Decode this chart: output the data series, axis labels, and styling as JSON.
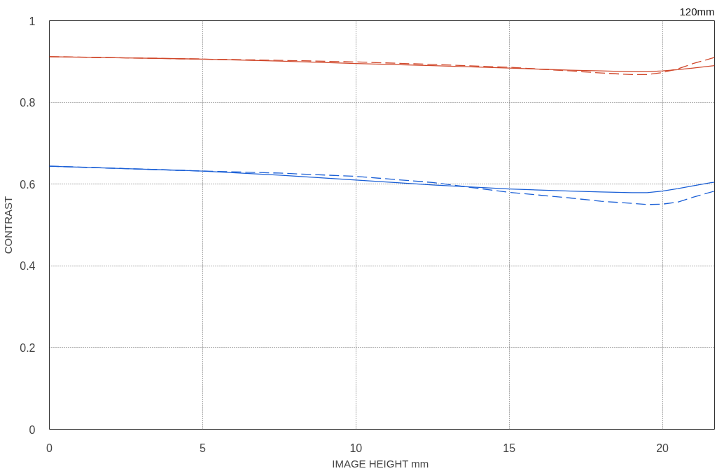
{
  "chart_data": {
    "type": "line",
    "title": "120mm",
    "xlabel": "IMAGE HEIGHT  mm",
    "ylabel": "CONTRAST",
    "xlim": [
      0,
      21.7
    ],
    "ylim": [
      0,
      1
    ],
    "xticks": [
      0,
      5,
      10,
      15,
      20
    ],
    "yticks": [
      0,
      0.2,
      0.4,
      0.6,
      0.8,
      1
    ],
    "grid": true,
    "marker": "none",
    "x": [
      0,
      2.5,
      5,
      7.5,
      10,
      12.5,
      15,
      17,
      18,
      19,
      19.5,
      20,
      20.5,
      21,
      21.7
    ],
    "series": [
      {
        "color": "#d0472a",
        "line_style": "solid",
        "values": [
          0.912,
          0.909,
          0.906,
          0.901,
          0.895,
          0.89,
          0.884,
          0.879,
          0.877,
          0.875,
          0.875,
          0.877,
          0.88,
          0.884,
          0.89
        ]
      },
      {
        "color": "#d0472a",
        "line_style": "dashed",
        "values": [
          0.912,
          0.909,
          0.906,
          0.903,
          0.899,
          0.893,
          0.886,
          0.877,
          0.872,
          0.868,
          0.868,
          0.873,
          0.882,
          0.895,
          0.91
        ]
      },
      {
        "color": "#1a5fd6",
        "line_style": "solid",
        "values": [
          0.644,
          0.638,
          0.632,
          0.622,
          0.61,
          0.598,
          0.588,
          0.583,
          0.581,
          0.579,
          0.579,
          0.583,
          0.589,
          0.596,
          0.605
        ]
      },
      {
        "color": "#1a5fd6",
        "line_style": "dashed",
        "values": [
          0.644,
          0.638,
          0.632,
          0.627,
          0.619,
          0.604,
          0.58,
          0.566,
          0.558,
          0.553,
          0.55,
          0.551,
          0.556,
          0.568,
          0.583
        ]
      }
    ]
  }
}
